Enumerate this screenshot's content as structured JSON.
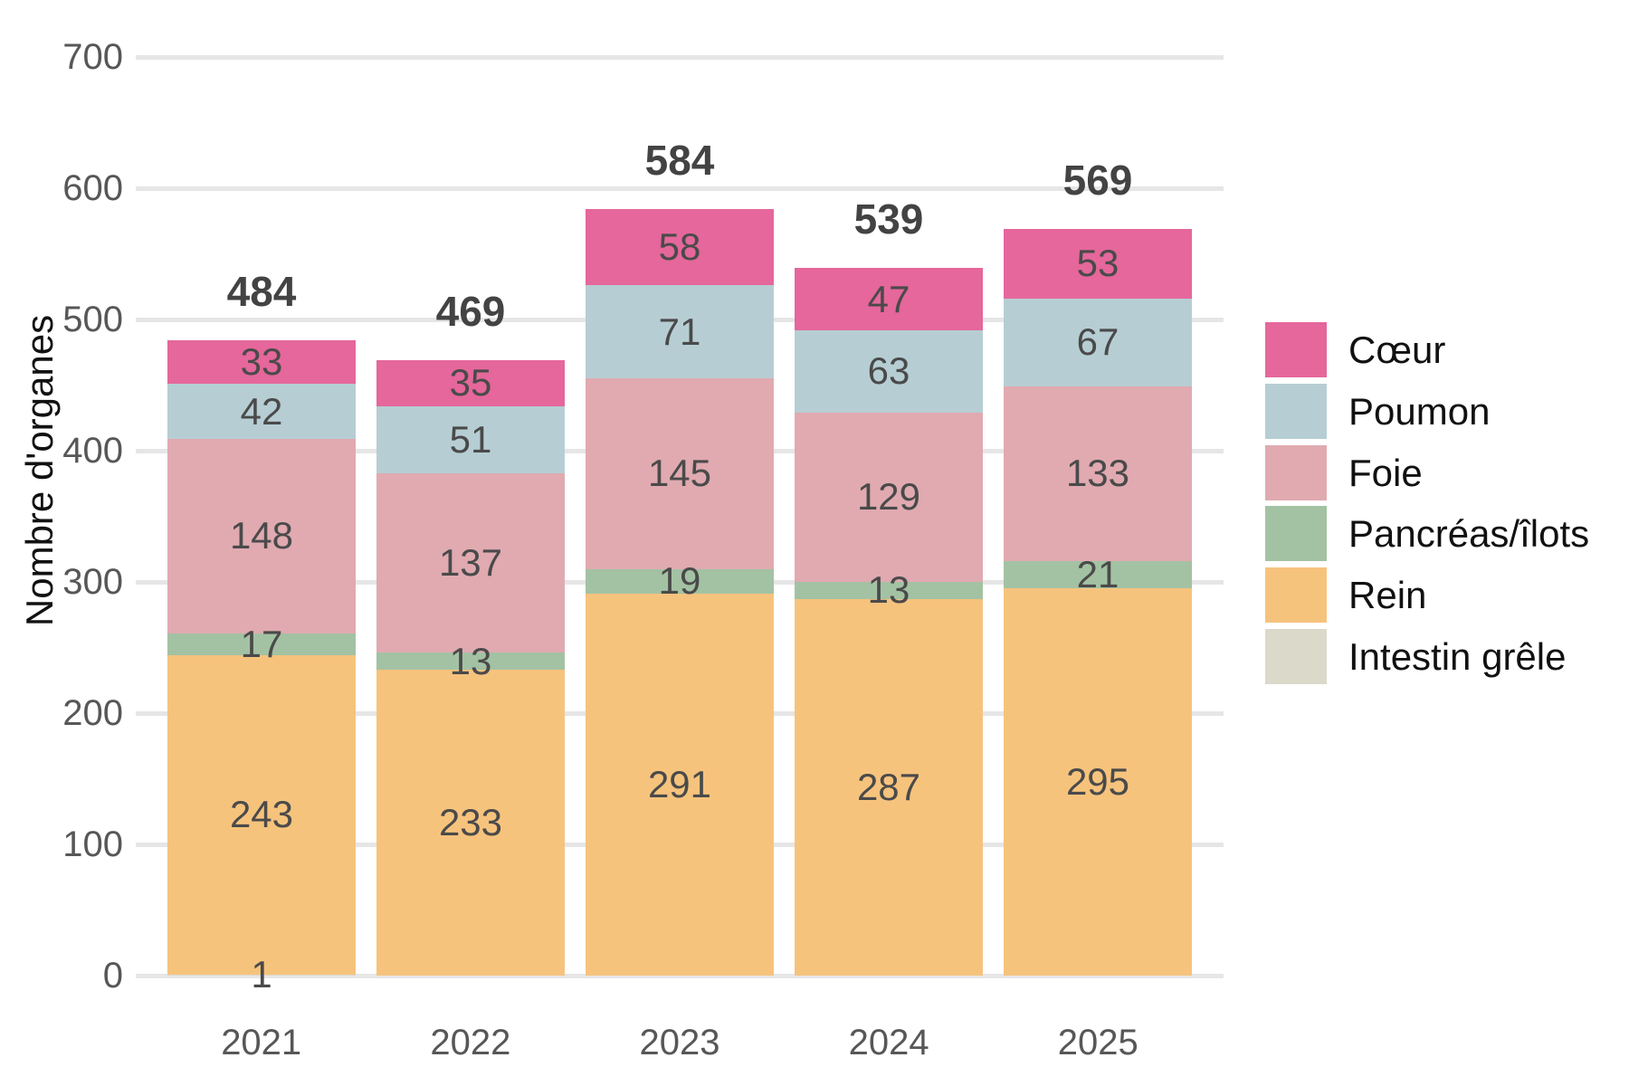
{
  "chart_data": {
    "type": "bar",
    "stacked": true,
    "title": "",
    "xlabel": "",
    "ylabel": "Nombre d'organes",
    "categories": [
      "2021",
      "2022",
      "2023",
      "2024",
      "2025"
    ],
    "series": [
      {
        "name": "Cœur",
        "color": "#e5679b",
        "values": [
          33,
          35,
          58,
          47,
          53
        ]
      },
      {
        "name": "Poumon",
        "color": "#b6ced3",
        "values": [
          42,
          51,
          71,
          63,
          67
        ]
      },
      {
        "name": "Foie",
        "color": "#e0aab0",
        "values": [
          148,
          137,
          145,
          129,
          133
        ]
      },
      {
        "name": "Pancréas/îlots",
        "color": "#a3c2a3",
        "values": [
          17,
          13,
          19,
          13,
          21
        ]
      },
      {
        "name": "Rein",
        "color": "#f6c37d",
        "values": [
          243,
          233,
          291,
          287,
          295
        ]
      },
      {
        "name": "Intestin grêle",
        "color": "#dbd9ca",
        "values": [
          1,
          0,
          0,
          0,
          0
        ]
      }
    ],
    "stack_order_bottom_to_top": [
      "Intestin grêle",
      "Rein",
      "Pancréas/îlots",
      "Foie",
      "Poumon",
      "Cœur"
    ],
    "totals": [
      484,
      469,
      584,
      539,
      569
    ],
    "y_ticks": [
      0,
      100,
      200,
      300,
      400,
      500,
      600,
      700
    ],
    "ylim": [
      0,
      700
    ],
    "grid": true,
    "legend_position": "right"
  },
  "colors": {
    "grid": "#e6e6e6",
    "axis_text": "#575757",
    "segment_label": "#4a4a4a",
    "total_label": "#434343",
    "legend_text": "#111111"
  }
}
